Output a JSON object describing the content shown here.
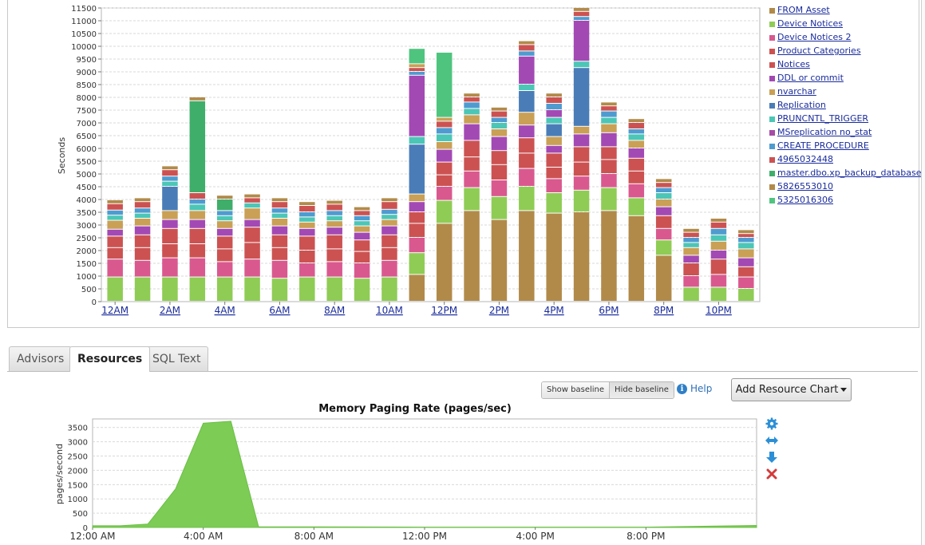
{
  "wait_chart": {
    "ylabel": "Seconds",
    "y_ticks": [
      "0",
      "500",
      "1000",
      "1500",
      "2000",
      "2500",
      "3000",
      "3500",
      "4000",
      "4500",
      "5000",
      "5500",
      "6000",
      "6500",
      "7000",
      "7500",
      "8000",
      "8500",
      "9000",
      "9500",
      "10000",
      "10500",
      "11000",
      "11500"
    ],
    "x_labels": [
      "12AM",
      "2AM",
      "4AM",
      "6AM",
      "8AM",
      "10AM",
      "12PM",
      "2PM",
      "4PM",
      "6PM",
      "8PM",
      "10PM"
    ]
  },
  "legend": [
    {
      "label": "FROM Asset",
      "color": "#b18a4a"
    },
    {
      "label": "Device Notices",
      "color": "#8fcc55"
    },
    {
      "label": "Device Notices 2",
      "color": "#d9598f"
    },
    {
      "label": "Product Categories",
      "color": "#cc5252"
    },
    {
      "label": "Notices",
      "color": "#cc5252"
    },
    {
      "label": "DDL or  commit",
      "color": "#a349b4"
    },
    {
      "label": "nvarchar",
      "color": "#c9a055"
    },
    {
      "label": "Replication",
      "color": "#4a7db7"
    },
    {
      "label": "PRUNCNTL_TRIGGER",
      "color": "#4cc6b6"
    },
    {
      "label": "MSreplication no_stat",
      "color": "#a64ca6"
    },
    {
      "label": "CREATE PROCEDURE",
      "color": "#4f9bd0"
    },
    {
      "label": "4965032448",
      "color": "#cc5252"
    },
    {
      "label": "master.dbo.xp_backup_database",
      "color": "#3fae6b"
    },
    {
      "label": "5826553010",
      "color": "#b18a4a"
    },
    {
      "label": "5325016306",
      "color": "#4fc47f"
    }
  ],
  "tabs": [
    {
      "label": "Advisors",
      "active": false
    },
    {
      "label": "Resources",
      "active": true
    },
    {
      "label": "SQL Text",
      "active": false
    }
  ],
  "toolbar": {
    "show_baseline": "Show baseline",
    "hide_baseline": "Hide baseline",
    "help": "Help",
    "add_chart": "Add Resource Chart"
  },
  "mem_chart": {
    "title": "Memory Paging Rate (pages/sec)",
    "ylabel": "pages/second",
    "y_ticks": [
      "0",
      "500",
      "1000",
      "1500",
      "2000",
      "2500",
      "3000",
      "3500"
    ],
    "x_labels": [
      "12:00 AM",
      "4:00 AM",
      "8:00 AM",
      "12:00 PM",
      "4:00 PM",
      "8:00 PM"
    ]
  },
  "chart_data": [
    {
      "type": "bar",
      "stacked": true,
      "ylabel": "Seconds",
      "ylim": [
        0,
        11500
      ],
      "categories": [
        "12AM",
        "1AM",
        "2AM",
        "3AM",
        "4AM",
        "5AM",
        "6AM",
        "7AM",
        "8AM",
        "9AM",
        "10AM",
        "11AM",
        "12PM",
        "1PM",
        "2PM",
        "3PM",
        "4PM",
        "5PM",
        "6PM",
        "7PM",
        "8PM",
        "9PM",
        "10PM",
        "11PM"
      ],
      "totals": [
        4050,
        4100,
        5400,
        8150,
        4600,
        4300,
        4050,
        3950,
        4050,
        3700,
        4100,
        10100,
        10000,
        8300,
        7650,
        10250,
        8200,
        11050,
        7250,
        6750,
        4800,
        2850,
        3250,
        2800
      ],
      "legend_position": "right"
    },
    {
      "type": "area",
      "title": "Memory Paging Rate (pages/sec)",
      "ylabel": "pages/second",
      "ylim": [
        0,
        3800
      ],
      "x": [
        "12:00 AM",
        "1:00 AM",
        "2:00 AM",
        "3:00 AM",
        "4:00 AM",
        "5:00 AM",
        "6:00 AM",
        "8:00 AM",
        "12:00 PM",
        "4:00 PM",
        "8:00 PM",
        "11:59 PM"
      ],
      "values": [
        60,
        60,
        120,
        1350,
        3650,
        3720,
        20,
        20,
        10,
        10,
        10,
        70
      ]
    }
  ]
}
